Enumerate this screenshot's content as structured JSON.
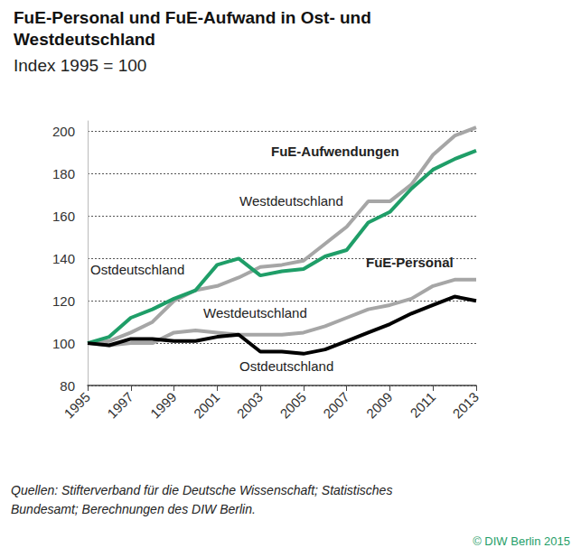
{
  "chart_data": {
    "type": "line",
    "title": "FuE-Personal und FuE-Aufwand in Ost- und Westdeutschland",
    "subtitle": "Index 1995 = 100",
    "source": "Quellen: Stifterverband für die Deutsche Wissenschaft; Statistisches Bundesamt; Berechnungen des DIW Berlin.",
    "credit": "© DIW Berlin 2015",
    "annotations": [
      "FuE-Aufwendungen",
      "Westdeutschland",
      "Ostdeutschland",
      "FuE-Personal",
      "Westdeutschland",
      "Ostdeutschland"
    ],
    "x": [
      1995,
      1996,
      1997,
      1998,
      1999,
      2000,
      2001,
      2002,
      2003,
      2004,
      2005,
      2006,
      2007,
      2008,
      2009,
      2010,
      2011,
      2012,
      2013
    ],
    "xlim": [
      1995,
      2013
    ],
    "xticks": [
      1995,
      1997,
      1999,
      2001,
      2003,
      2005,
      2007,
      2009,
      2011,
      2013
    ],
    "ylim": [
      80,
      205
    ],
    "yticks": [
      80,
      100,
      120,
      140,
      160,
      180,
      200
    ],
    "grid": true,
    "series": [
      {
        "name": "Westdeutschland",
        "color": "#a6a6a6",
        "values": [
          100,
          101,
          105,
          110,
          120,
          125,
          127,
          131,
          136,
          137,
          139,
          147,
          155,
          167,
          167,
          175,
          189,
          198,
          202
        ]
      },
      {
        "name": "Ostdeutschland",
        "color": "#1f9e68",
        "values": [
          100,
          103,
          112,
          116,
          121,
          125,
          137,
          140,
          132,
          134,
          135,
          141,
          144,
          157,
          162,
          173,
          182,
          187,
          191
        ]
      },
      {
        "name": "Westdeutschland",
        "color": "#a6a6a6",
        "values": [
          100,
          99,
          100,
          100,
          105,
          106,
          105,
          104,
          104,
          104,
          105,
          108,
          112,
          116,
          118,
          121,
          127,
          130,
          130
        ]
      },
      {
        "name": "Ostdeutschland",
        "color": "#000000",
        "values": [
          100,
          99,
          102,
          102,
          101,
          101,
          103,
          104,
          96,
          96,
          95,
          97,
          101,
          105,
          109,
          114,
          118,
          122,
          120
        ]
      }
    ]
  }
}
